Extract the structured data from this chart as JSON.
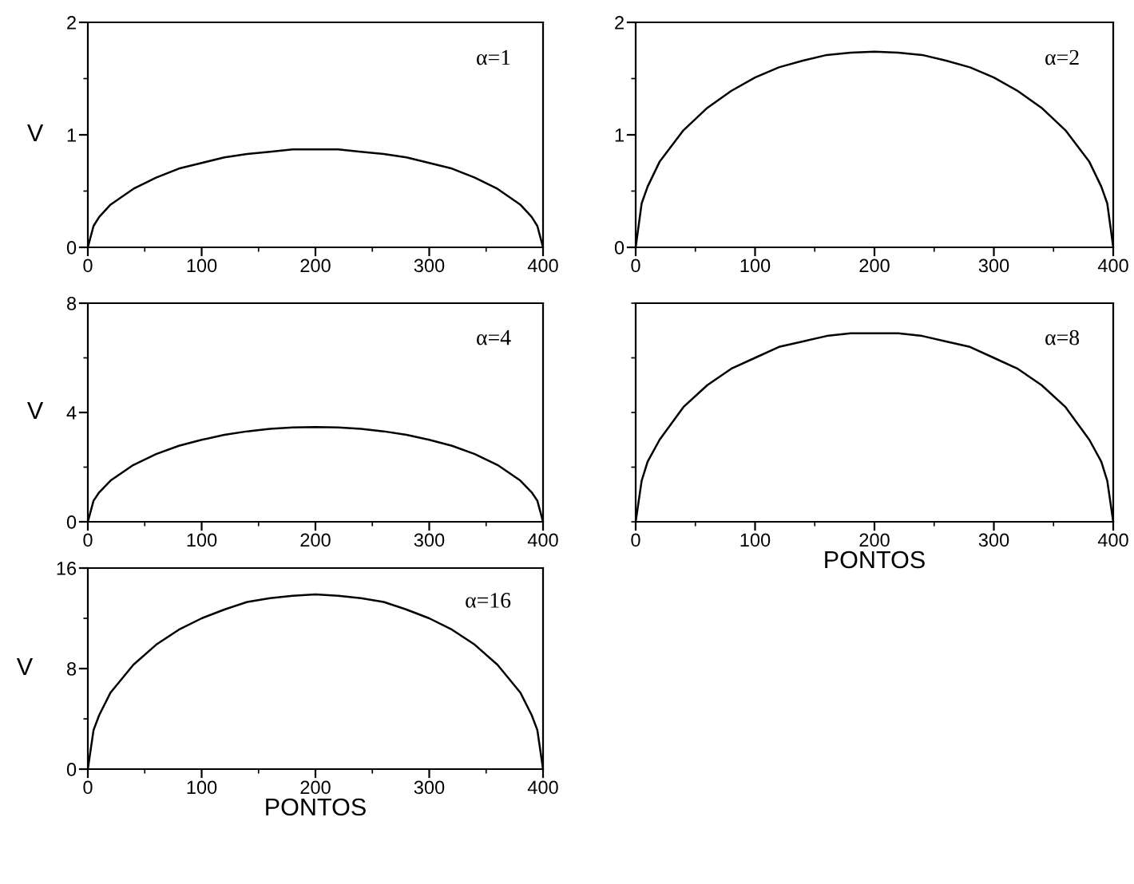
{
  "chart_data": [
    {
      "type": "line",
      "ylabel": "V",
      "annotations": [
        "α=1"
      ],
      "xlim": [
        0,
        400
      ],
      "xticks": [
        0,
        {
          "value": 50,
          "label": null
        },
        100,
        {
          "value": 150,
          "label": null
        },
        200,
        {
          "value": 250,
          "label": null
        },
        300,
        {
          "value": 350,
          "label": null
        },
        400
      ],
      "ylim": [
        0,
        2
      ],
      "yticks": [
        0,
        {
          "value": 0.5,
          "label": null
        },
        1,
        {
          "value": 1.5,
          "label": null
        },
        2
      ],
      "x": [
        0,
        5,
        10,
        20,
        40,
        60,
        80,
        100,
        120,
        140,
        160,
        180,
        200,
        220,
        240,
        260,
        280,
        300,
        320,
        340,
        360,
        380,
        390,
        395,
        400
      ],
      "series": [
        {
          "color": "#000000",
          "values": [
            0,
            0.19,
            0.27,
            0.38,
            0.52,
            0.62,
            0.7,
            0.75,
            0.8,
            0.83,
            0.85,
            0.87,
            0.87,
            0.87,
            0.85,
            0.83,
            0.8,
            0.75,
            0.7,
            0.62,
            0.52,
            0.38,
            0.27,
            0.19,
            0
          ]
        }
      ]
    },
    {
      "type": "line",
      "annotations": [
        "α=2"
      ],
      "xlim": [
        0,
        400
      ],
      "xticks": [
        0,
        {
          "value": 50,
          "label": null
        },
        100,
        {
          "value": 150,
          "label": null
        },
        200,
        {
          "value": 250,
          "label": null
        },
        300,
        {
          "value": 350,
          "label": null
        },
        400
      ],
      "ylim": [
        0,
        2
      ],
      "yticks": [
        0,
        {
          "value": 0.5,
          "label": null
        },
        1,
        {
          "value": 1.5,
          "label": null
        },
        2
      ],
      "x": [
        0,
        5,
        10,
        20,
        40,
        60,
        80,
        100,
        120,
        140,
        160,
        180,
        200,
        220,
        240,
        260,
        280,
        300,
        320,
        340,
        360,
        380,
        390,
        395,
        400
      ],
      "series": [
        {
          "color": "#000000",
          "values": [
            0,
            0.39,
            0.54,
            0.76,
            1.04,
            1.24,
            1.39,
            1.51,
            1.6,
            1.66,
            1.71,
            1.73,
            1.74,
            1.73,
            1.71,
            1.66,
            1.6,
            1.51,
            1.39,
            1.24,
            1.04,
            0.76,
            0.54,
            0.39,
            0
          ]
        }
      ]
    },
    {
      "type": "line",
      "ylabel": "V",
      "annotations": [
        "α=4"
      ],
      "xlim": [
        0,
        400
      ],
      "xticks": [
        0,
        {
          "value": 50,
          "label": null
        },
        100,
        {
          "value": 150,
          "label": null
        },
        200,
        {
          "value": 250,
          "label": null
        },
        300,
        {
          "value": 350,
          "label": null
        },
        400
      ],
      "ylim": [
        0,
        8
      ],
      "yticks": [
        0,
        {
          "value": 2,
          "label": null
        },
        4,
        {
          "value": 6,
          "label": null
        },
        8
      ],
      "x": [
        0,
        5,
        10,
        20,
        40,
        60,
        80,
        100,
        120,
        140,
        160,
        180,
        200,
        220,
        240,
        260,
        280,
        300,
        320,
        340,
        360,
        380,
        390,
        395,
        400
      ],
      "series": [
        {
          "color": "#000000",
          "values": [
            0,
            0.77,
            1.08,
            1.51,
            2.08,
            2.48,
            2.78,
            3.0,
            3.18,
            3.31,
            3.4,
            3.45,
            3.47,
            3.45,
            3.4,
            3.31,
            3.18,
            3.0,
            2.78,
            2.48,
            2.08,
            1.51,
            1.08,
            0.77,
            0
          ]
        }
      ]
    },
    {
      "type": "line",
      "xlabel": "PONTOS",
      "annotations": [
        "α=8"
      ],
      "tick_labels": "x",
      "xlim": [
        0,
        400
      ],
      "xticks": [
        0,
        {
          "value": 50,
          "label": null
        },
        100,
        {
          "value": 150,
          "label": null
        },
        200,
        {
          "value": 250,
          "label": null
        },
        300,
        {
          "value": 350,
          "label": null
        },
        400
      ],
      "ylim": [
        0,
        8
      ],
      "yticks": [
        {
          "value": 0,
          "label": null
        },
        {
          "value": 2,
          "label": null
        },
        {
          "value": 4,
          "label": null
        },
        {
          "value": 6,
          "label": null
        },
        {
          "value": 8,
          "label": null
        }
      ],
      "x": [
        0,
        5,
        10,
        20,
        40,
        60,
        80,
        100,
        120,
        140,
        160,
        180,
        200,
        220,
        240,
        260,
        280,
        300,
        320,
        340,
        360,
        380,
        390,
        395,
        400
      ],
      "series": [
        {
          "color": "#000000",
          "values": [
            0,
            1.5,
            2.2,
            3.0,
            4.2,
            5.0,
            5.6,
            6.0,
            6.4,
            6.6,
            6.8,
            6.9,
            6.9,
            6.9,
            6.8,
            6.6,
            6.4,
            6.0,
            5.6,
            5.0,
            4.2,
            3.0,
            2.2,
            1.5,
            0
          ]
        }
      ]
    },
    {
      "type": "line",
      "ylabel": "V",
      "xlabel": "PONTOS",
      "annotations": [
        "α=16"
      ],
      "xlim": [
        0,
        400
      ],
      "xticks": [
        0,
        {
          "value": 50,
          "label": null
        },
        100,
        {
          "value": 150,
          "label": null
        },
        200,
        {
          "value": 250,
          "label": null
        },
        300,
        {
          "value": 350,
          "label": null
        },
        400
      ],
      "ylim": [
        0,
        16
      ],
      "yticks": [
        0,
        {
          "value": 4,
          "label": null
        },
        8,
        {
          "value": 12,
          "label": null
        },
        16
      ],
      "x": [
        0,
        5,
        10,
        20,
        40,
        60,
        80,
        100,
        120,
        140,
        160,
        180,
        200,
        220,
        240,
        260,
        280,
        300,
        320,
        340,
        360,
        380,
        390,
        395,
        400
      ],
      "series": [
        {
          "color": "#000000",
          "values": [
            0,
            3.1,
            4.3,
            6.1,
            8.3,
            9.9,
            11.1,
            12.0,
            12.7,
            13.3,
            13.6,
            13.8,
            13.9,
            13.8,
            13.6,
            13.3,
            12.7,
            12.0,
            11.1,
            9.9,
            8.3,
            6.1,
            4.3,
            3.1,
            0
          ]
        }
      ]
    }
  ]
}
